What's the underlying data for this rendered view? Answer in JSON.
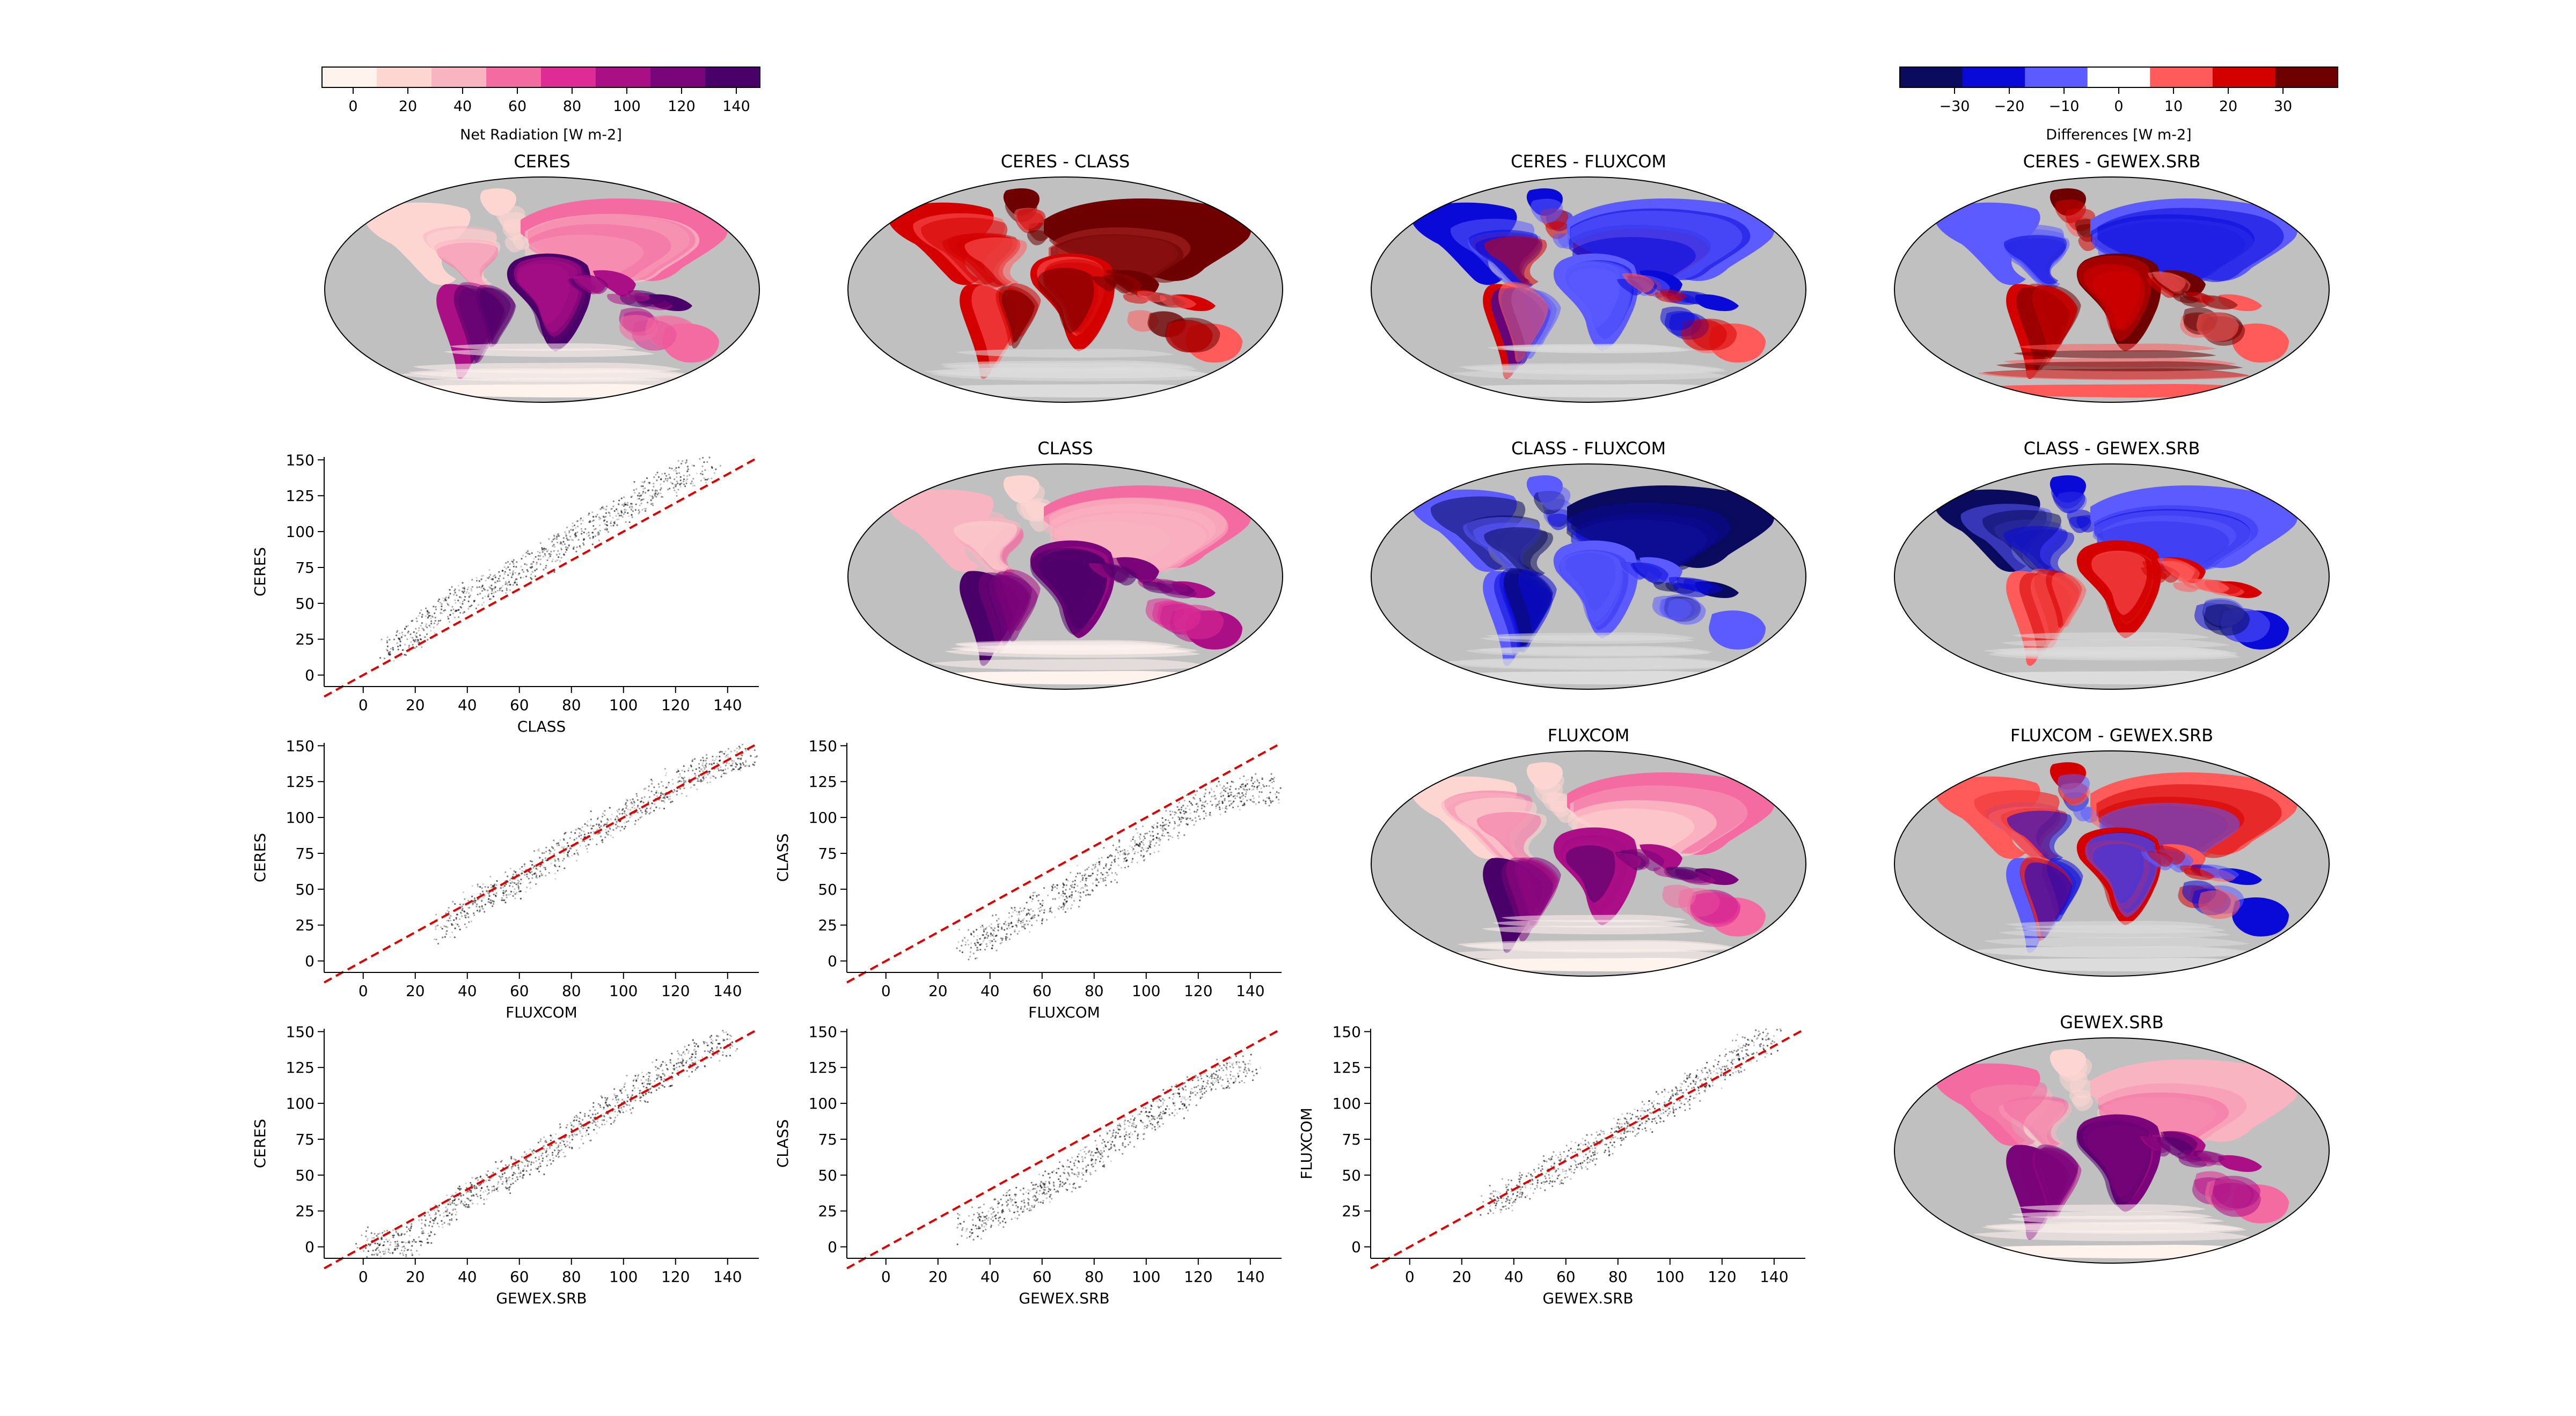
{
  "figure": {
    "colorbar_net": {
      "label": "Net Radiation [W m-2]",
      "ticks": [
        "0",
        "20",
        "40",
        "60",
        "80",
        "100",
        "120",
        "140"
      ],
      "colors": [
        "#fff3ee",
        "#fdd6d2",
        "#f9b4c1",
        "#f36ba1",
        "#df2b96",
        "#ab0f86",
        "#7a047a",
        "#4a0069"
      ]
    },
    "colorbar_diff": {
      "label": "Differences [W m-2]",
      "ticks": [
        "−30",
        "−20",
        "−10",
        "0",
        "10",
        "20",
        "30"
      ],
      "colors": [
        "#0a0a5e",
        "#0a0ad8",
        "#5b5bff",
        "#ffffff",
        "#ff5b5b",
        "#d40000",
        "#6e0000"
      ]
    },
    "map_panels": [
      {
        "title": "CERES",
        "kind": "net"
      },
      {
        "title": "CERES - CLASS",
        "kind": "diff_red"
      },
      {
        "title": "CERES - FLUXCOM",
        "kind": "diff_mixed"
      },
      {
        "title": "CERES - GEWEX.SRB",
        "kind": "diff_mixed_red"
      },
      {
        "title": "CLASS",
        "kind": "net"
      },
      {
        "title": "CLASS - FLUXCOM",
        "kind": "diff_blue"
      },
      {
        "title": "CLASS - GEWEX.SRB",
        "kind": "diff_mixed_blue"
      },
      {
        "title": "FLUXCOM",
        "kind": "net"
      },
      {
        "title": "FLUXCOM - GEWEX.SRB",
        "kind": "diff_mixed"
      },
      {
        "title": "GEWEX.SRB",
        "kind": "net"
      }
    ],
    "scatter_panels": [
      {
        "xlabel": "CLASS",
        "ylabel": "CERES"
      },
      {
        "xlabel": "FLUXCOM",
        "ylabel": "CERES"
      },
      {
        "xlabel": "FLUXCOM",
        "ylabel": "CLASS"
      },
      {
        "xlabel": "GEWEX.SRB",
        "ylabel": "CERES"
      },
      {
        "xlabel": "GEWEX.SRB",
        "ylabel": "CLASS"
      },
      {
        "xlabel": "GEWEX.SRB",
        "ylabel": "FLUXCOM"
      }
    ],
    "scatter_xticks": [
      "0",
      "20",
      "40",
      "60",
      "80",
      "100",
      "120",
      "140"
    ],
    "scatter_yticks": [
      "0",
      "25",
      "50",
      "75",
      "100",
      "125",
      "150"
    ]
  },
  "chart_data": [
    {
      "type": "heatmap",
      "title": "CERES",
      "colorbar": "Net Radiation [W m-2]"
    },
    {
      "type": "heatmap",
      "title": "CERES - CLASS",
      "colorbar": "Differences [W m-2]"
    },
    {
      "type": "heatmap",
      "title": "CERES - FLUXCOM",
      "colorbar": "Differences [W m-2]"
    },
    {
      "type": "heatmap",
      "title": "CERES - GEWEX.SRB",
      "colorbar": "Differences [W m-2]"
    },
    {
      "type": "heatmap",
      "title": "CLASS",
      "colorbar": "Net Radiation [W m-2]"
    },
    {
      "type": "heatmap",
      "title": "CLASS - FLUXCOM",
      "colorbar": "Differences [W m-2]"
    },
    {
      "type": "heatmap",
      "title": "CLASS - GEWEX.SRB",
      "colorbar": "Differences [W m-2]"
    },
    {
      "type": "heatmap",
      "title": "FLUXCOM",
      "colorbar": "Net Radiation [W m-2]"
    },
    {
      "type": "heatmap",
      "title": "FLUXCOM - GEWEX.SRB",
      "colorbar": "Differences [W m-2]"
    },
    {
      "type": "heatmap",
      "title": "GEWEX.SRB",
      "colorbar": "Net Radiation [W m-2]"
    },
    {
      "type": "scatter",
      "xlabel": "CLASS",
      "ylabel": "CERES",
      "xlim": [
        -15,
        152
      ],
      "ylim": [
        -8,
        152
      ],
      "reference_line": "1:1",
      "cloud": [
        [
          10,
          18
        ],
        [
          20,
          30
        ],
        [
          30,
          45
        ],
        [
          40,
          55
        ],
        [
          50,
          62
        ],
        [
          60,
          72
        ],
        [
          70,
          82
        ],
        [
          80,
          95
        ],
        [
          90,
          105
        ],
        [
          100,
          115
        ],
        [
          110,
          128
        ],
        [
          120,
          138
        ],
        [
          135,
          145
        ]
      ]
    },
    {
      "type": "scatter",
      "xlabel": "FLUXCOM",
      "ylabel": "CERES",
      "xlim": [
        -15,
        152
      ],
      "ylim": [
        -8,
        152
      ],
      "reference_line": "1:1",
      "cloud": [
        [
          30,
          22
        ],
        [
          40,
          38
        ],
        [
          50,
          48
        ],
        [
          60,
          55
        ],
        [
          70,
          68
        ],
        [
          80,
          82
        ],
        [
          90,
          92
        ],
        [
          100,
          102
        ],
        [
          110,
          112
        ],
        [
          120,
          124
        ],
        [
          130,
          132
        ],
        [
          140,
          140
        ],
        [
          150,
          143
        ]
      ]
    },
    {
      "type": "scatter",
      "xlabel": "FLUXCOM",
      "ylabel": "CLASS",
      "xlim": [
        -15,
        152
      ],
      "ylim": [
        -8,
        152
      ],
      "reference_line": "1:1",
      "cloud": [
        [
          30,
          10
        ],
        [
          40,
          18
        ],
        [
          50,
          28
        ],
        [
          60,
          38
        ],
        [
          70,
          48
        ],
        [
          80,
          60
        ],
        [
          90,
          72
        ],
        [
          100,
          82
        ],
        [
          110,
          95
        ],
        [
          120,
          108
        ],
        [
          130,
          115
        ],
        [
          140,
          118
        ],
        [
          150,
          120
        ]
      ]
    },
    {
      "type": "scatter",
      "xlabel": "GEWEX.SRB",
      "ylabel": "CERES",
      "xlim": [
        -15,
        152
      ],
      "ylim": [
        -8,
        152
      ],
      "reference_line": "1:1",
      "cloud": [
        [
          0,
          2
        ],
        [
          10,
          3
        ],
        [
          20,
          5
        ],
        [
          30,
          22
        ],
        [
          40,
          35
        ],
        [
          50,
          45
        ],
        [
          60,
          55
        ],
        [
          70,
          65
        ],
        [
          80,
          78
        ],
        [
          90,
          90
        ],
        [
          100,
          102
        ],
        [
          110,
          115
        ],
        [
          120,
          125
        ],
        [
          130,
          135
        ],
        [
          140,
          145
        ]
      ]
    },
    {
      "type": "scatter",
      "xlabel": "GEWEX.SRB",
      "ylabel": "CLASS",
      "xlim": [
        -15,
        152
      ],
      "ylim": [
        -8,
        152
      ],
      "reference_line": "1:1",
      "cloud": [
        [
          30,
          12
        ],
        [
          40,
          20
        ],
        [
          50,
          30
        ],
        [
          60,
          38
        ],
        [
          70,
          50
        ],
        [
          80,
          62
        ],
        [
          90,
          75
        ],
        [
          100,
          88
        ],
        [
          110,
          100
        ],
        [
          120,
          112
        ],
        [
          130,
          120
        ],
        [
          140,
          125
        ]
      ]
    },
    {
      "type": "scatter",
      "xlabel": "GEWEX.SRB",
      "ylabel": "FLUXCOM",
      "xlim": [
        -15,
        152
      ],
      "ylim": [
        -8,
        152
      ],
      "reference_line": "1:1",
      "cloud": [
        [
          30,
          30
        ],
        [
          40,
          38
        ],
        [
          50,
          48
        ],
        [
          60,
          58
        ],
        [
          70,
          68
        ],
        [
          80,
          80
        ],
        [
          90,
          90
        ],
        [
          100,
          100
        ],
        [
          110,
          112
        ],
        [
          120,
          125
        ],
        [
          130,
          138
        ],
        [
          140,
          148
        ]
      ]
    }
  ]
}
